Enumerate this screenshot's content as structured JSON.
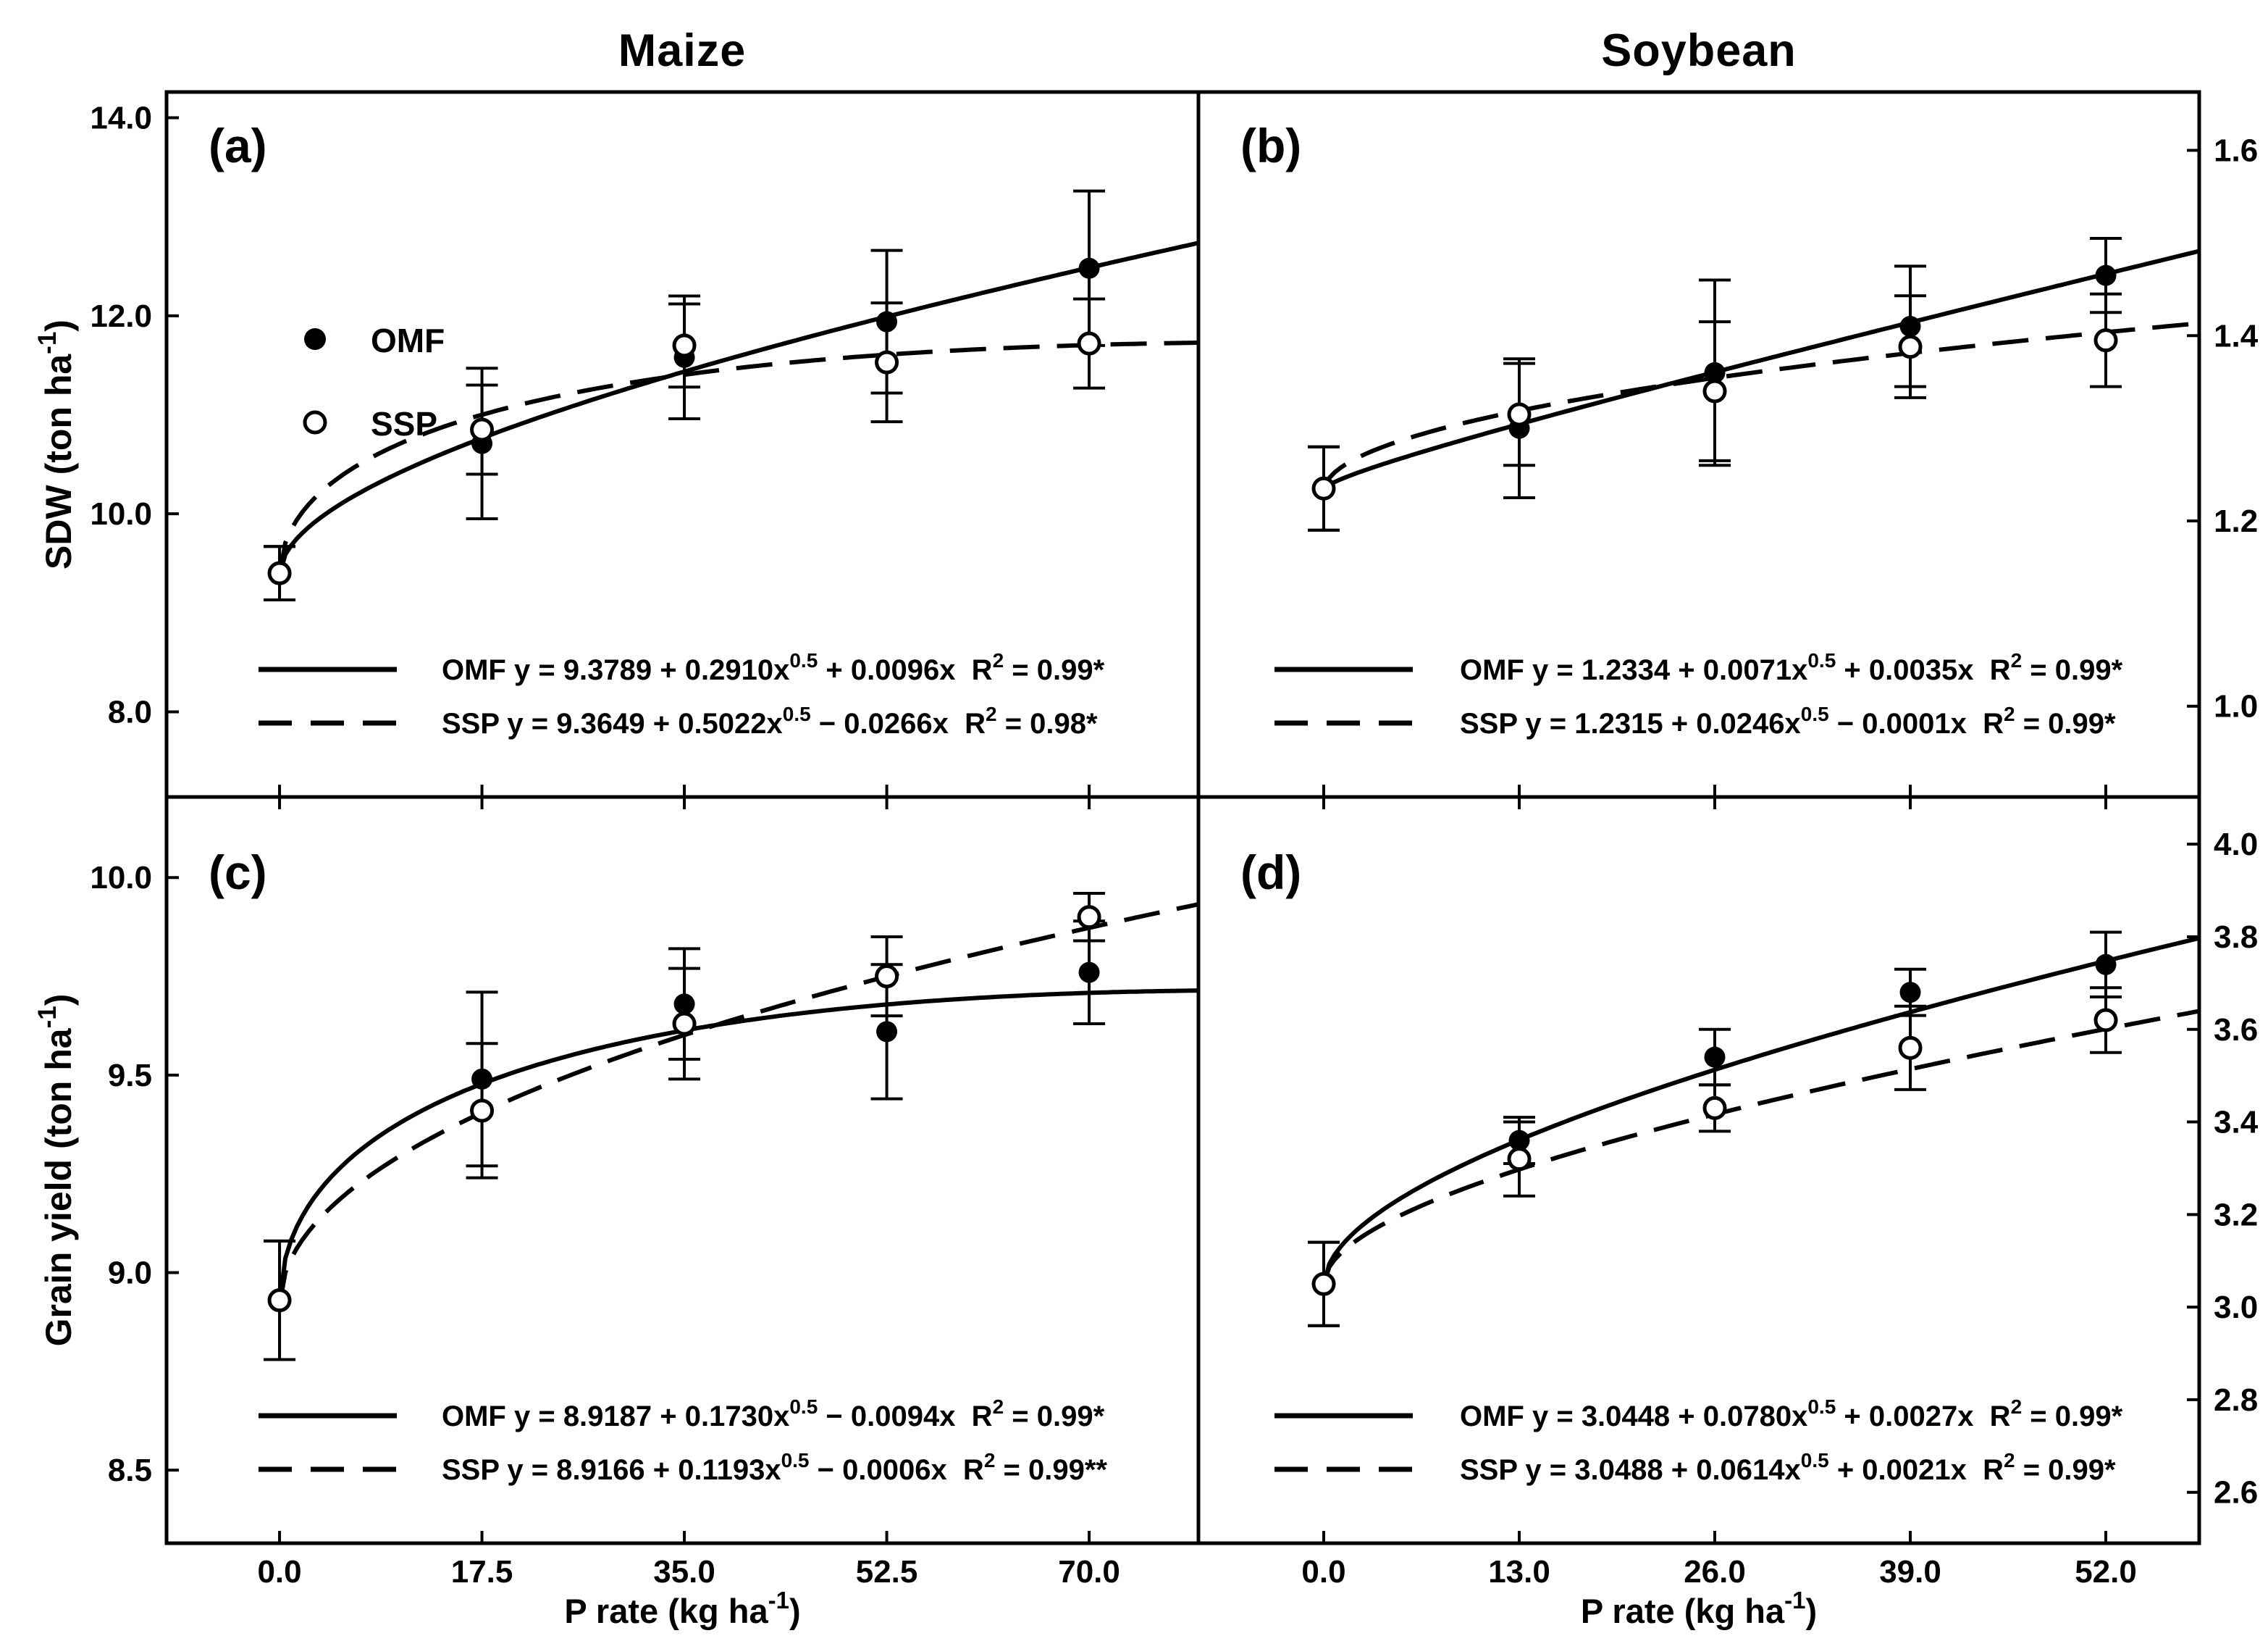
{
  "figure": {
    "column_titles": [
      "Maize",
      "Soybean"
    ],
    "colors": {
      "ink": "#000000",
      "background": "#ffffff"
    },
    "legend": {
      "items": [
        {
          "label": "OMF",
          "marker": "filled-circle-icon"
        },
        {
          "label": "SSP",
          "marker": "open-circle-icon"
        }
      ],
      "position": "panel-a-upper-left"
    },
    "x_axis_title_text": "P rate (kg ha-1)",
    "x_axis_title_segments": [
      {
        "t": "P rate (kg ha"
      },
      {
        "t": "-1",
        "sup": true
      },
      {
        "t": ")"
      }
    ]
  },
  "chart_data": [
    {
      "id": "a",
      "type": "scatter",
      "panel_label": "(a)",
      "crop": "Maize",
      "measure": "Shoot dry weight",
      "y_axis_title_text": "SDW (ton ha-1)",
      "y_axis_title_segments": [
        {
          "t": "SDW (ton ha"
        },
        {
          "t": "-1",
          "sup": true
        },
        {
          "t": ")"
        }
      ],
      "y_axis_side": "left",
      "has_legend": true,
      "x_ticks": [
        0,
        17.5,
        35,
        52.5,
        70
      ],
      "x_tick_labels": [
        "0.0",
        "17.5",
        "35.0",
        "52.5",
        "70.0"
      ],
      "y_ticks": [
        8,
        10,
        12,
        14
      ],
      "y_tick_labels": [
        "8.0",
        "10.0",
        "12.0",
        "14.0"
      ],
      "xlim": [
        -9.77,
        79.45
      ],
      "ylim": [
        7.14,
        14.26
      ],
      "grid": false,
      "series": [
        {
          "name": "OMF",
          "marker": "filled-circle",
          "line": "solid",
          "x": [
            0,
            17.5,
            35,
            52.5,
            70
          ],
          "y": [
            9.4,
            10.71,
            11.58,
            11.94,
            12.48
          ],
          "err": [
            0.27,
            0.76,
            0.62,
            0.72,
            0.78
          ],
          "fit": {
            "intercept": 9.3789,
            "sqrt_coef": 0.291,
            "linear_coef": 0.0096,
            "r2": "0.99*"
          },
          "equation_text": "OMF y = 9.3789 + 0.2910x^0.5 + 0.0096x  R2 = 0.99*",
          "equation_segments": [
            {
              "t": "OMF y = 9.3789 + 0.2910x"
            },
            {
              "t": "0.5",
              "sup": true
            },
            {
              "t": " + 0.0096x  R"
            },
            {
              "t": "2",
              "sup": true
            },
            {
              "t": " = 0.99*"
            }
          ]
        },
        {
          "name": "SSP",
          "marker": "open-circle",
          "line": "dashed",
          "x": [
            0,
            17.5,
            35,
            52.5,
            70
          ],
          "y": [
            9.4,
            10.85,
            11.7,
            11.53,
            11.72
          ],
          "err": [
            0.27,
            0.45,
            0.42,
            0.6,
            0.45
          ],
          "fit": {
            "intercept": 9.3649,
            "sqrt_coef": 0.5022,
            "linear_coef": -0.0266,
            "r2": "0.98*"
          },
          "equation_text": "SSP y = 9.3649 + 0.5022x^0.5 - 0.0266x  R2 = 0.98*",
          "equation_segments": [
            {
              "t": "SSP y = 9.3649 + 0.5022x"
            },
            {
              "t": "0.5",
              "sup": true
            },
            {
              "t": " − 0.0266x  R"
            },
            {
              "t": "2",
              "sup": true
            },
            {
              "t": " = 0.98*"
            }
          ]
        }
      ]
    },
    {
      "id": "b",
      "type": "scatter",
      "panel_label": "(b)",
      "crop": "Soybean",
      "measure": "Shoot dry weight",
      "y_axis_title_text": null,
      "y_axis_title_segments": null,
      "y_axis_side": "right",
      "has_legend": false,
      "x_ticks": [
        0,
        13,
        26,
        39,
        52
      ],
      "x_tick_labels": [
        "0.0",
        "13.0",
        "26.0",
        "39.0",
        "52.0"
      ],
      "y_ticks": [
        1.0,
        1.2,
        1.4,
        1.6
      ],
      "y_tick_labels": [
        "1.0",
        "1.2",
        "1.4",
        "1.6"
      ],
      "xlim": [
        -8.33,
        58.21
      ],
      "ylim": [
        0.902,
        1.663
      ],
      "grid": false,
      "series": [
        {
          "name": "OMF",
          "marker": "filled-circle",
          "line": "solid",
          "x": [
            0,
            13,
            26,
            39,
            52
          ],
          "y": [
            1.235,
            1.3,
            1.36,
            1.41,
            1.465
          ],
          "err": [
            0.045,
            0.075,
            0.1,
            0.065,
            0.04
          ],
          "fit": {
            "intercept": 1.2334,
            "sqrt_coef": 0.0071,
            "linear_coef": 0.0035,
            "r2": "0.99*"
          },
          "equation_text": "OMF y = 1.2334 + 0.0071x^0.5 + 0.0035x  R2 = 0.99*",
          "equation_segments": [
            {
              "t": "OMF y = 1.2334 + 0.0071x"
            },
            {
              "t": "0.5",
              "sup": true
            },
            {
              "t": " + 0.0035x  R"
            },
            {
              "t": "2",
              "sup": true
            },
            {
              "t": " = 0.99*"
            }
          ]
        },
        {
          "name": "SSP",
          "marker": "open-circle",
          "line": "dashed",
          "x": [
            0,
            13,
            26,
            39,
            52
          ],
          "y": [
            1.235,
            1.315,
            1.34,
            1.388,
            1.395
          ],
          "err": [
            0.045,
            0.055,
            0.075,
            0.055,
            0.05
          ],
          "fit": {
            "intercept": 1.2315,
            "sqrt_coef": 0.0246,
            "linear_coef": -0.0001,
            "r2": "0.99*"
          },
          "equation_text": "SSP y = 1.2315 + 0.0246x^0.5 - 0.0001x  R2 = 0.99*",
          "equation_segments": [
            {
              "t": "SSP y = 1.2315 + 0.0246x"
            },
            {
              "t": "0.5",
              "sup": true
            },
            {
              "t": " − 0.0001x  R"
            },
            {
              "t": "2",
              "sup": true
            },
            {
              "t": " = 0.99*"
            }
          ]
        }
      ]
    },
    {
      "id": "c",
      "type": "scatter",
      "panel_label": "(c)",
      "crop": "Maize",
      "measure": "Grain yield",
      "y_axis_title_text": "Grain yield (ton ha-1)",
      "y_axis_title_segments": [
        {
          "t": "Grain yield (ton ha"
        },
        {
          "t": "-1",
          "sup": true
        },
        {
          "t": ")"
        }
      ],
      "y_axis_side": "left",
      "has_legend": false,
      "x_ticks": [
        0,
        17.5,
        35,
        52.5,
        70
      ],
      "x_tick_labels": [
        "0.0",
        "17.5",
        "35.0",
        "52.5",
        "70.0"
      ],
      "y_ticks": [
        8.5,
        9.0,
        9.5,
        10.0
      ],
      "y_tick_labels": [
        "8.5",
        "9.0",
        "9.5",
        "10.0"
      ],
      "xlim": [
        -9.77,
        79.45
      ],
      "ylim": [
        8.315,
        10.204
      ],
      "grid": false,
      "series": [
        {
          "name": "OMF",
          "marker": "filled-circle",
          "line": "solid",
          "x": [
            0,
            17.5,
            35,
            52.5,
            70
          ],
          "y": [
            8.93,
            9.49,
            9.68,
            9.61,
            9.76
          ],
          "err": [
            0.15,
            0.22,
            0.14,
            0.17,
            0.13
          ],
          "fit": {
            "intercept": 8.9187,
            "sqrt_coef": 0.173,
            "linear_coef": -0.0094,
            "r2": "0.99*"
          },
          "equation_text": "OMF y = 8.9187 + 0.1730x^0.5 - 0.0094x  R2 = 0.99*",
          "equation_segments": [
            {
              "t": "OMF y = 8.9187 + 0.1730x"
            },
            {
              "t": "0.5",
              "sup": true
            },
            {
              "t": " − 0.0094x  R"
            },
            {
              "t": "2",
              "sup": true
            },
            {
              "t": " = 0.99*"
            }
          ]
        },
        {
          "name": "SSP",
          "marker": "open-circle",
          "line": "dashed",
          "x": [
            0,
            17.5,
            35,
            52.5,
            70
          ],
          "y": [
            8.93,
            9.41,
            9.63,
            9.75,
            9.9
          ],
          "err": [
            0.15,
            0.17,
            0.14,
            0.1,
            0.06
          ],
          "fit": {
            "intercept": 8.9166,
            "sqrt_coef": 0.1193,
            "linear_coef": -0.0006,
            "r2": "0.99**"
          },
          "equation_text": "SSP y = 8.9166 + 0.1193x^0.5 - 0.0006x  R2 = 0.99**",
          "equation_segments": [
            {
              "t": "SSP y = 8.9166 + 0.1193x"
            },
            {
              "t": "0.5",
              "sup": true
            },
            {
              "t": " − 0.0006x  R"
            },
            {
              "t": "2",
              "sup": true
            },
            {
              "t": " = 0.99**"
            }
          ]
        }
      ]
    },
    {
      "id": "d",
      "type": "scatter",
      "panel_label": "(d)",
      "crop": "Soybean",
      "measure": "Grain yield",
      "y_axis_title_text": null,
      "y_axis_title_segments": null,
      "y_axis_side": "right",
      "has_legend": false,
      "x_ticks": [
        0,
        13,
        26,
        39,
        52
      ],
      "x_tick_labels": [
        "0.0",
        "13.0",
        "26.0",
        "39.0",
        "52.0"
      ],
      "y_ticks": [
        2.6,
        2.8,
        3.0,
        3.2,
        3.4,
        3.6,
        3.8,
        4.0
      ],
      "y_tick_labels": [
        "2.6",
        "2.8",
        "3.0",
        "3.2",
        "3.4",
        "3.6",
        "3.8",
        "4.0"
      ],
      "xlim": [
        -8.33,
        58.21
      ],
      "ylim": [
        2.49,
        4.102
      ],
      "grid": false,
      "series": [
        {
          "name": "OMF",
          "marker": "filled-circle",
          "line": "solid",
          "x": [
            0,
            13,
            26,
            39,
            52
          ],
          "y": [
            3.05,
            3.36,
            3.54,
            3.68,
            3.74
          ],
          "err": [
            0.09,
            0.05,
            0.06,
            0.05,
            0.07
          ],
          "fit": {
            "intercept": 3.0448,
            "sqrt_coef": 0.078,
            "linear_coef": 0.0027,
            "r2": "0.99*"
          },
          "equation_text": "OMF y = 3.0448 + 0.0780x^0.5 + 0.0027x  R2 = 0.99*",
          "equation_segments": [
            {
              "t": "OMF y = 3.0448 + 0.0780x"
            },
            {
              "t": "0.5",
              "sup": true
            },
            {
              "t": " + 0.0027x  R"
            },
            {
              "t": "2",
              "sup": true
            },
            {
              "t": " = 0.99*"
            }
          ]
        },
        {
          "name": "SSP",
          "marker": "open-circle",
          "line": "dashed",
          "x": [
            0,
            13,
            26,
            39,
            52
          ],
          "y": [
            3.05,
            3.32,
            3.43,
            3.56,
            3.62
          ],
          "err": [
            0.09,
            0.08,
            0.05,
            0.09,
            0.07
          ],
          "fit": {
            "intercept": 3.0488,
            "sqrt_coef": 0.0614,
            "linear_coef": 0.0021,
            "r2": "0.99*"
          },
          "equation_text": "SSP y = 3.0488 + 0.0614x^0.5 + 0.0021x  R2 = 0.99*",
          "equation_segments": [
            {
              "t": "SSP y = 3.0488 + 0.0614x"
            },
            {
              "t": "0.5",
              "sup": true
            },
            {
              "t": " + 0.0021x  R"
            },
            {
              "t": "2",
              "sup": true
            },
            {
              "t": " = 0.99*"
            }
          ]
        }
      ]
    }
  ]
}
